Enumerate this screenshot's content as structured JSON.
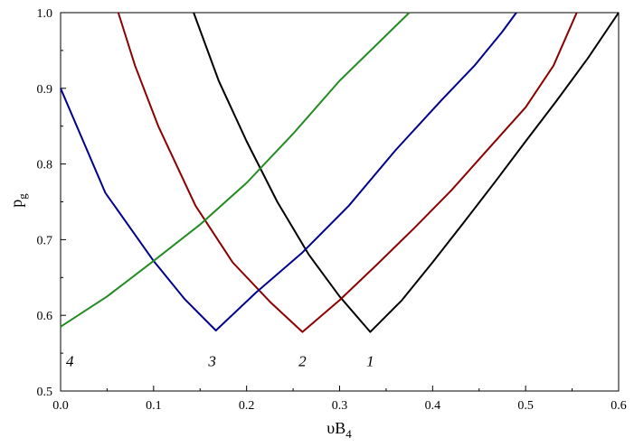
{
  "chart_data": {
    "type": "line",
    "xlabel": "υB",
    "xlabel_sub": "4",
    "ylabel": "p",
    "ylabel_sub": "g",
    "xlim": [
      0.0,
      0.6
    ],
    "ylim": [
      0.5,
      1.0
    ],
    "x_ticks": [
      "0.0",
      "0.1",
      "0.2",
      "0.3",
      "0.4",
      "0.5",
      "0.6"
    ],
    "y_ticks": [
      "0.5",
      "0.6",
      "0.7",
      "0.8",
      "0.9",
      "1.0"
    ],
    "grid": false,
    "legend": "none",
    "series": [
      {
        "label": "1",
        "color": "#000000",
        "label_pos": [
          0.333,
          0.54
        ],
        "points": [
          [
            0.143,
            1.0
          ],
          [
            0.17,
            0.91
          ],
          [
            0.2,
            0.83
          ],
          [
            0.233,
            0.75
          ],
          [
            0.267,
            0.68
          ],
          [
            0.3,
            0.625
          ],
          [
            0.333,
            0.578
          ],
          [
            0.367,
            0.62
          ],
          [
            0.4,
            0.67
          ],
          [
            0.433,
            0.722
          ],
          [
            0.467,
            0.776
          ],
          [
            0.5,
            0.83
          ],
          [
            0.533,
            0.883
          ],
          [
            0.567,
            0.94
          ],
          [
            0.6,
            1.0
          ]
        ]
      },
      {
        "label": "2",
        "color": "#8b0000",
        "label_pos": [
          0.26,
          0.54
        ],
        "points": [
          [
            0.062,
            1.0
          ],
          [
            0.08,
            0.93
          ],
          [
            0.105,
            0.85
          ],
          [
            0.145,
            0.745
          ],
          [
            0.185,
            0.67
          ],
          [
            0.225,
            0.618
          ],
          [
            0.26,
            0.578
          ],
          [
            0.3,
            0.62
          ],
          [
            0.34,
            0.667
          ],
          [
            0.38,
            0.715
          ],
          [
            0.42,
            0.765
          ],
          [
            0.46,
            0.82
          ],
          [
            0.5,
            0.875
          ],
          [
            0.53,
            0.93
          ],
          [
            0.555,
            1.0
          ]
        ]
      },
      {
        "label": "3",
        "color": "#00008b",
        "label_pos": [
          0.163,
          0.54
        ],
        "points": [
          [
            0.0,
            0.9
          ],
          [
            0.048,
            0.762
          ],
          [
            0.1,
            0.672
          ],
          [
            0.133,
            0.622
          ],
          [
            0.167,
            0.58
          ],
          [
            0.21,
            0.63
          ],
          [
            0.26,
            0.683
          ],
          [
            0.31,
            0.745
          ],
          [
            0.36,
            0.818
          ],
          [
            0.41,
            0.885
          ],
          [
            0.445,
            0.93
          ],
          [
            0.475,
            0.975
          ],
          [
            0.49,
            1.0
          ]
        ]
      },
      {
        "label": "4",
        "color": "#228b22",
        "label_pos": [
          0.01,
          0.54
        ],
        "points": [
          [
            0.0,
            0.585
          ],
          [
            0.05,
            0.625
          ],
          [
            0.1,
            0.672
          ],
          [
            0.15,
            0.72
          ],
          [
            0.2,
            0.775
          ],
          [
            0.25,
            0.84
          ],
          [
            0.3,
            0.91
          ],
          [
            0.35,
            0.97
          ],
          [
            0.375,
            1.0
          ]
        ]
      }
    ]
  }
}
